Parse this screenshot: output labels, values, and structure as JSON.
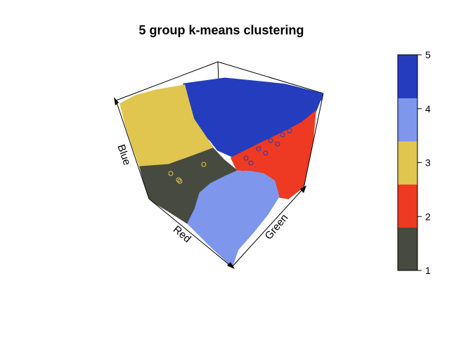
{
  "chart_data": {
    "type": "scatter",
    "title": "5 group k-means clustering",
    "axis_labels": {
      "x": "Red",
      "y": "Green",
      "z": "Blue"
    },
    "colorbar": {
      "ticks": [
        "1",
        "2",
        "3",
        "4",
        "5"
      ],
      "range": [
        1,
        5
      ],
      "colors": [
        "#474A3E",
        "#EE3A22",
        "#E0C64E",
        "#7E96EB",
        "#243DBE"
      ]
    },
    "clusters": [
      {
        "id": 1,
        "color": "#474A3E"
      },
      {
        "id": 2,
        "color": "#EE3A22"
      },
      {
        "id": 3,
        "color": "#E0C64E"
      },
      {
        "id": 4,
        "color": "#7E96EB"
      },
      {
        "id": 5,
        "color": "#243DBE"
      }
    ]
  }
}
